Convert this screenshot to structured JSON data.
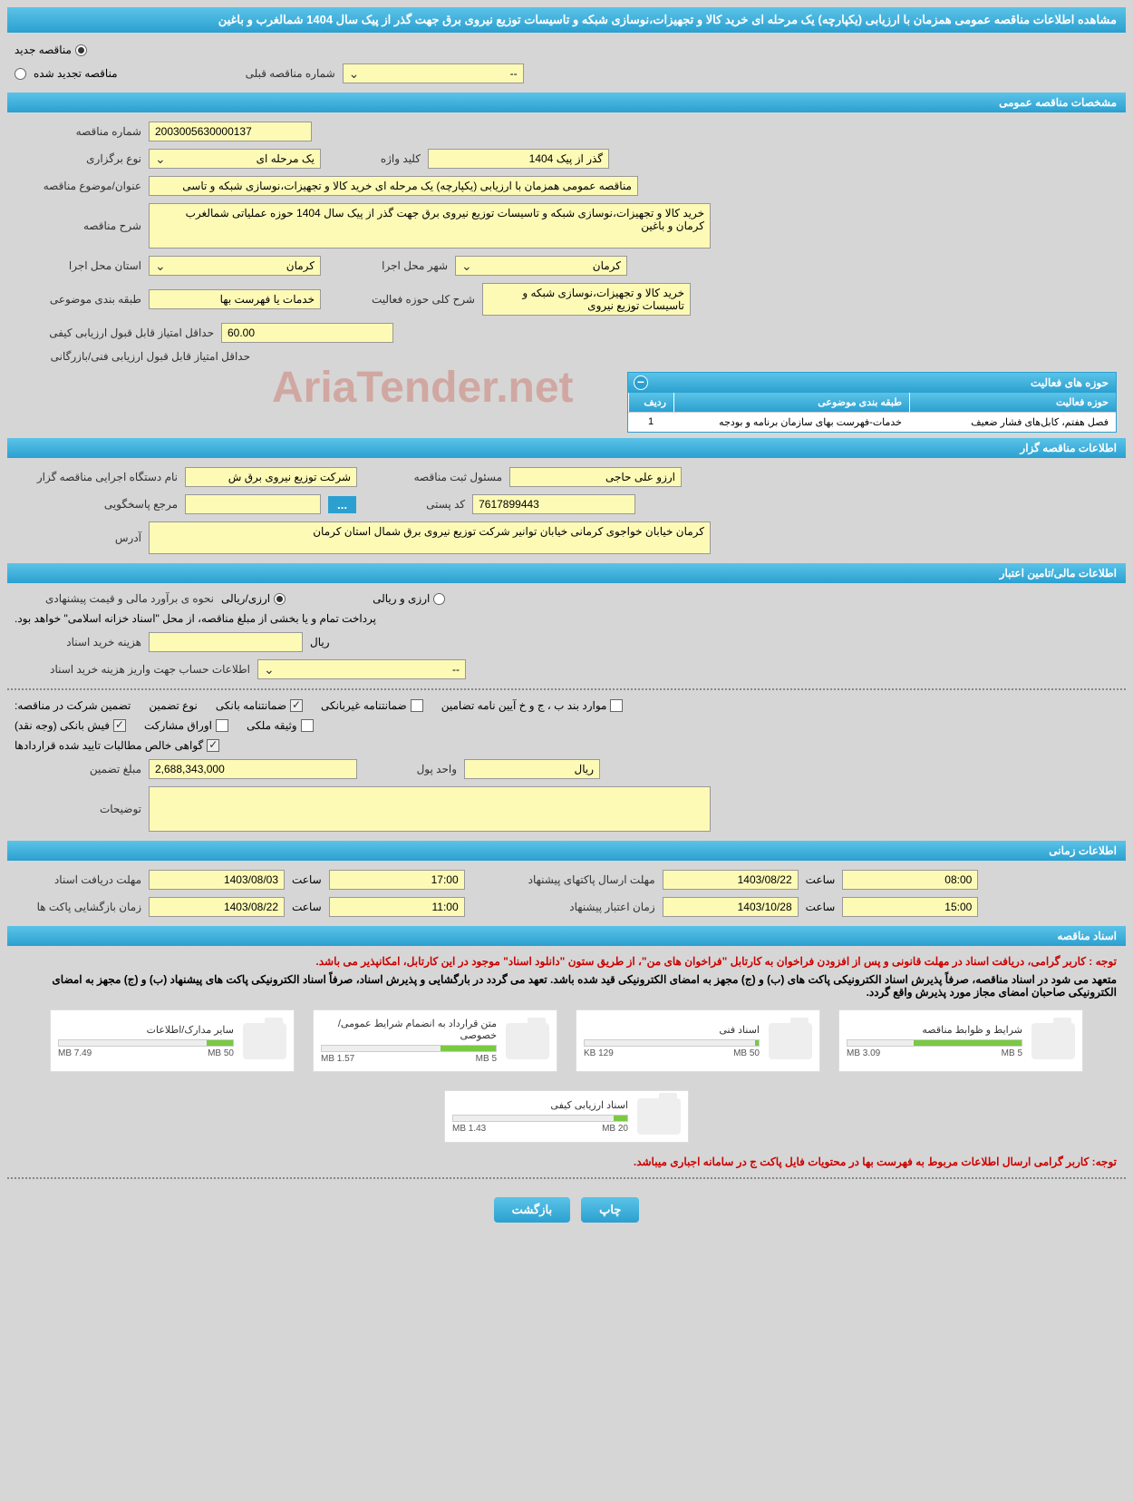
{
  "page_title": "مشاهده اطلاعات مناقصه عمومی همزمان با ارزیابی (یکپارچه) یک مرحله ای خرید کالا و تجهیزات،نوسازی شبکه و تاسیسات توزیع نیروی برق جهت گذر از پیک سال 1404 شمالغرب و باغین",
  "tender_type": {
    "new": "مناقصه جدید",
    "renewed": "مناقصه تجدید شده",
    "prev_label": "شماره مناقصه قبلی",
    "prev_value": "--"
  },
  "sections": {
    "general": "مشخصات مناقصه عمومی",
    "holder": "اطلاعات مناقصه گزار",
    "financial": "اطلاعات مالی/تامین اعتبار",
    "timing": "اطلاعات زمانی",
    "docs": "اسناد مناقصه"
  },
  "general": {
    "tender_no_label": "شماره مناقصه",
    "tender_no": "2003005630000137",
    "method_label": "نوع برگزاری",
    "method": "یک مرحله ای",
    "keyword_label": "کلید واژه",
    "keyword": "گذر از پیک 1404",
    "subject_label": "عنوان/موضوع مناقصه",
    "subject": "مناقصه عمومی همزمان با ارزیابی (یکپارچه) یک مرحله ای خرید کالا و تجهیزات،نوسازی شبکه و تاسی",
    "desc_label": "شرح مناقصه",
    "desc": "خرید کالا و تجهیزات،نوسازی شبکه و تاسیسات توزیع نیروی برق جهت گذر از پیک سال 1404 حوزه عملیاتی شمالغرب کرمان و باغین",
    "province_label": "استان محل اجرا",
    "province": "کرمان",
    "city_label": "شهر محل اجرا",
    "city": "کرمان",
    "category_label": "طبقه بندی موضوعی",
    "category": "خدمات یا فهرست بها",
    "scope_label": "شرح کلی حوزه فعالیت",
    "scope": "خرید کالا و تجهیزات،نوسازی شبکه و تاسیسات توزیع نیروی",
    "min_score_label": "حداقل امتیاز قابل قبول ارزیابی کیفی",
    "min_score": "60.00",
    "min_tech_label": "حداقل امتیاز قابل قبول ارزیابی فنی/بازرگانی"
  },
  "activity_table": {
    "title": "حوزه های فعالیت",
    "columns": [
      "ردیف",
      "طبقه بندی موضوعی",
      "حوزه فعالیت"
    ],
    "row": [
      "1",
      "خدمات-فهرست بهای سازمان برنامه و بودجه",
      "فصل هفتم، کابل‌های فشار ضعیف"
    ]
  },
  "holder": {
    "agency_label": "نام دستگاه اجرایی مناقصه گزار",
    "agency": "شرکت توزیع نیروی برق ش",
    "responsible_label": "مسئول ثبت مناقصه",
    "responsible": "ارزو علی حاجی",
    "contact_label": "مرجع پاسخگویی",
    "ellipsis": "...",
    "postal_label": "کد پستی",
    "postal": "7617899443",
    "address_label": "آدرس",
    "address": "کرمان خیابان خواجوی کرمانی خیابان توانیر شرکت توزیع نیروی برق شمال استان کرمان"
  },
  "financial": {
    "estimate_label": "نحوه ی برآورد مالی و قیمت پیشنهادی",
    "rial_option": "ارزی/ریالی",
    "currency_option": "ارزی و ریالی",
    "payment_note": "پرداخت تمام و یا بخشی از مبلغ مناقصه، از محل \"اسناد خزانه اسلامی\" خواهد بود.",
    "cost_label": "هزینه خرید اسناد",
    "cost_unit": "ریال",
    "account_label": "اطلاعات حساب جهت واریز هزینه خرید اسناد",
    "account_value": "--",
    "guarantee_label": "تضمین شرکت در مناقصه:",
    "guarantee_type_label": "نوع تضمین",
    "checks": {
      "bank_guarantee": "ضمانتنامه بانکی",
      "nonbank_guarantee": "ضمانتنامه غیربانکی",
      "bylaw": "موارد بند ب ، ج و خ آیین نامه تضامین",
      "bank_receipt": "فیش بانکی (وجه نقد)",
      "securities": "اوراق مشارکت",
      "property": "وثیقه ملکی",
      "net_claims": "گواهی خالص مطالبات تایید شده قراردادها"
    },
    "amount_label": "مبلغ تضمین",
    "amount": "2,688,343,000",
    "unit_label": "واحد پول",
    "unit_value": "ریال",
    "notes_label": "توضیحات"
  },
  "timing": {
    "receive_label": "مهلت دریافت اسناد",
    "receive_date": "1403/08/03",
    "receive_time": "17:00",
    "send_label": "مهلت ارسال پاکتهای پیشنهاد",
    "send_date": "1403/08/22",
    "send_time": "08:00",
    "open_label": "زمان بازگشایی پاکت ها",
    "open_date": "1403/08/22",
    "open_time": "11:00",
    "validity_label": "زمان اعتبار پیشنهاد",
    "validity_date": "1403/10/28",
    "validity_time": "15:00",
    "hour_label": "ساعت"
  },
  "docs": {
    "notice1": "توجه : کاربر گرامی، دریافت اسناد در مهلت قانونی و پس از افزودن فراخوان به کارتابل \"فراخوان های من\"، از طریق ستون \"دانلود اسناد\" موجود در این کارتابل، امکانپذیر می باشد.",
    "notice2": "متعهد می شود در اسناد مناقصه، صرفاً پذیرش اسناد الکترونیکی پاکت های (ب) و (ج) مجهز به امضای الکترونیکی قید شده باشد. تعهد می گردد در بارگشایی و پذیرش اسناد، صرفاً اسناد الکترونیکی پاکت های پیشنهاد (ب) و (ج) مجهز به امضای الکترونیکی صاحبان امضای مجاز مورد پذیرش واقع گردد.",
    "files": [
      {
        "name": "شرایط و ظوابط مناقصه",
        "used": "3.09 MB",
        "total": "5 MB",
        "pct": 62
      },
      {
        "name": "اسناد فنی",
        "used": "129 KB",
        "total": "50 MB",
        "pct": 2
      },
      {
        "name": "متن قرارداد به انضمام شرایط عمومی/خصوصی",
        "used": "1.57 MB",
        "total": "5 MB",
        "pct": 32
      },
      {
        "name": "سایر مدارک/اطلاعات",
        "used": "7.49 MB",
        "total": "50 MB",
        "pct": 15
      },
      {
        "name": "اسناد ارزیابی کیفی",
        "used": "1.43 MB",
        "total": "20 MB",
        "pct": 8
      }
    ],
    "footer_notice": "توجه: کاربر گرامی ارسال اطلاعات مربوط به فهرست بها در محتویات فایل پاکت ج در سامانه اجباری میباشد."
  },
  "buttons": {
    "print": "چاپ",
    "back": "بازگشت"
  },
  "watermark": "AriaTender.net",
  "colors": {
    "header_bg": "#3bb3e0",
    "field_bg": "#fdfab6",
    "body_bg": "#d6d6d6",
    "progress": "#7ac943"
  }
}
